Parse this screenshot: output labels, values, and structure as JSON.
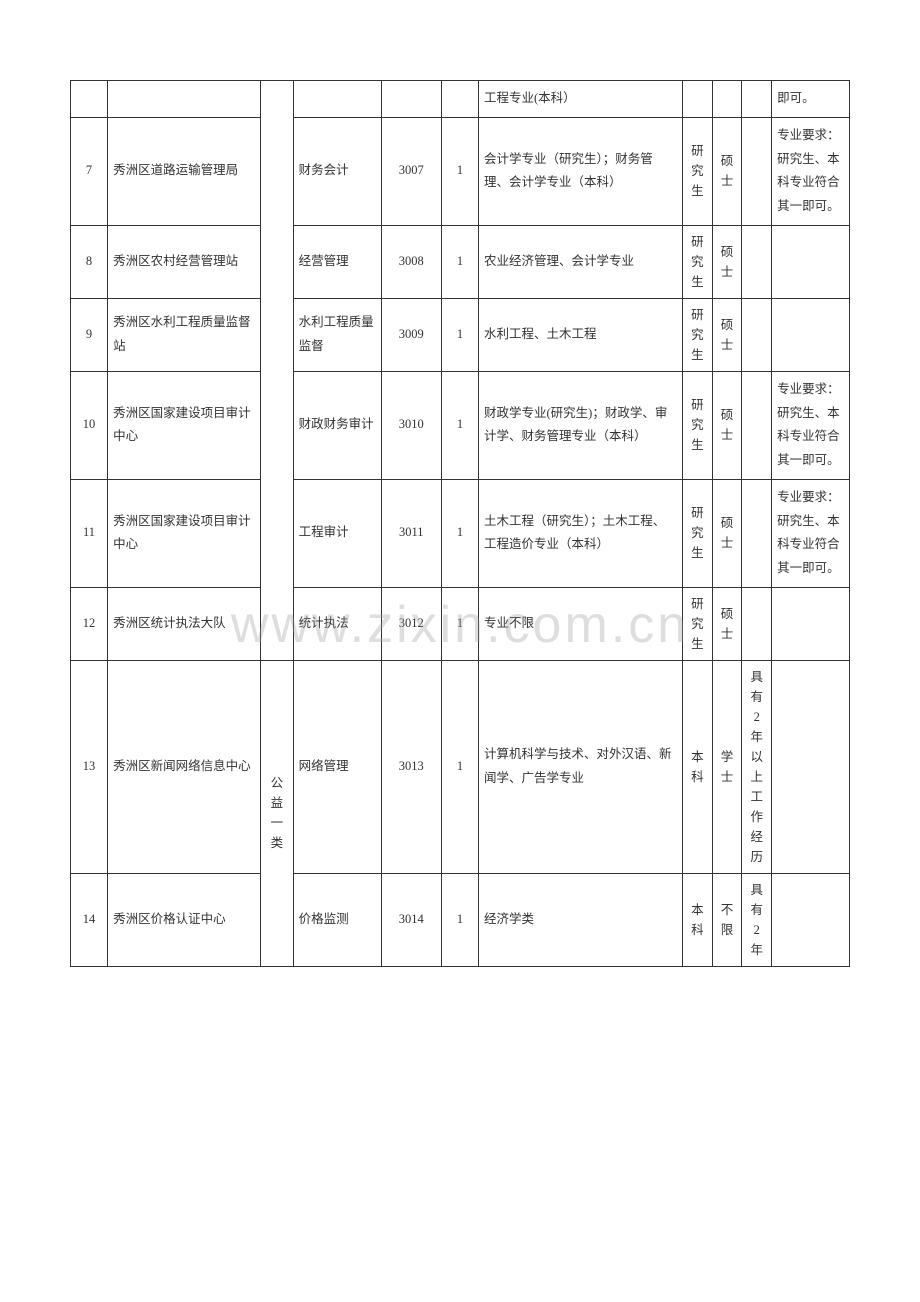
{
  "watermark": "www.zixin.com.cn",
  "colors": {
    "border": "#333333",
    "text": "#333333",
    "background": "#ffffff",
    "watermark": "rgba(160,160,160,0.35)"
  },
  "columns": {
    "widths_pct": [
      4,
      16.5,
      3.5,
      9.5,
      6.5,
      4,
      22,
      3.2,
      3.2,
      3.2,
      8.4
    ],
    "alignment": [
      "center",
      "left",
      "center",
      "left",
      "center",
      "center",
      "left",
      "center",
      "center",
      "center",
      "left"
    ]
  },
  "type_group1": "",
  "type_group2": "公益一类",
  "rows": [
    {
      "seq": "",
      "unit": "",
      "position": "",
      "code": "",
      "count": "",
      "major": "工程专业(本科）",
      "edu": "",
      "degree": "",
      "req": "",
      "remark": "即可。"
    },
    {
      "seq": "7",
      "unit": "秀洲区道路运输管理局",
      "position": "财务会计",
      "code": "3007",
      "count": "1",
      "major": "会计学专业（研究生）；财务管理、会计学专业（本科）",
      "edu": "研究生",
      "degree": "硕士",
      "req": "",
      "remark": "专业要求：研究生、本科专业符合其一即可。"
    },
    {
      "seq": "8",
      "unit": "秀洲区农村经营管理站",
      "position": "经营管理",
      "code": "3008",
      "count": "1",
      "major": "农业经济管理、会计学专业",
      "edu": "研究生",
      "degree": "硕士",
      "req": "",
      "remark": ""
    },
    {
      "seq": "9",
      "unit": "秀洲区水利工程质量监督站",
      "position": "水利工程质量监督",
      "code": "3009",
      "count": "1",
      "major": "水利工程、土木工程",
      "edu": "研究生",
      "degree": "硕士",
      "req": "",
      "remark": ""
    },
    {
      "seq": "10",
      "unit": "秀洲区国家建设项目审计中心",
      "position": "财政财务审计",
      "code": "3010",
      "count": "1",
      "major": "财政学专业(研究生)；财政学、审计学、财务管理专业（本科）",
      "edu": "研究生",
      "degree": "硕士",
      "req": "",
      "remark": "专业要求：研究生、本科专业符合其一即可。"
    },
    {
      "seq": "11",
      "unit": "秀洲区国家建设项目审计中心",
      "position": "工程审计",
      "code": "3011",
      "count": "1",
      "major": "土木工程（研究生）；土木工程、工程造价专业（本科）",
      "edu": "研究生",
      "degree": "硕士",
      "req": "",
      "remark": "专业要求：研究生、本科专业符合其一即可。"
    },
    {
      "seq": "12",
      "unit": "秀洲区统计执法大队",
      "position": "统计执法",
      "code": "3012",
      "count": "1",
      "major": "专业不限",
      "edu": "研究生",
      "degree": "硕士",
      "req": "",
      "remark": ""
    },
    {
      "seq": "13",
      "unit": "秀洲区新闻网络信息中心",
      "position": "网络管理",
      "code": "3013",
      "count": "1",
      "major": "计算机科学与技术、对外汉语、新闻学、广告学专业",
      "edu": "本科",
      "degree": "学士",
      "req": "具有2年以上工作经历",
      "remark": ""
    },
    {
      "seq": "14",
      "unit": "秀洲区价格认证中心",
      "position": "价格监测",
      "code": "3014",
      "count": "1",
      "major": "经济学类",
      "edu": "本科",
      "degree": "不限",
      "req": "具有2年",
      "remark": ""
    }
  ]
}
